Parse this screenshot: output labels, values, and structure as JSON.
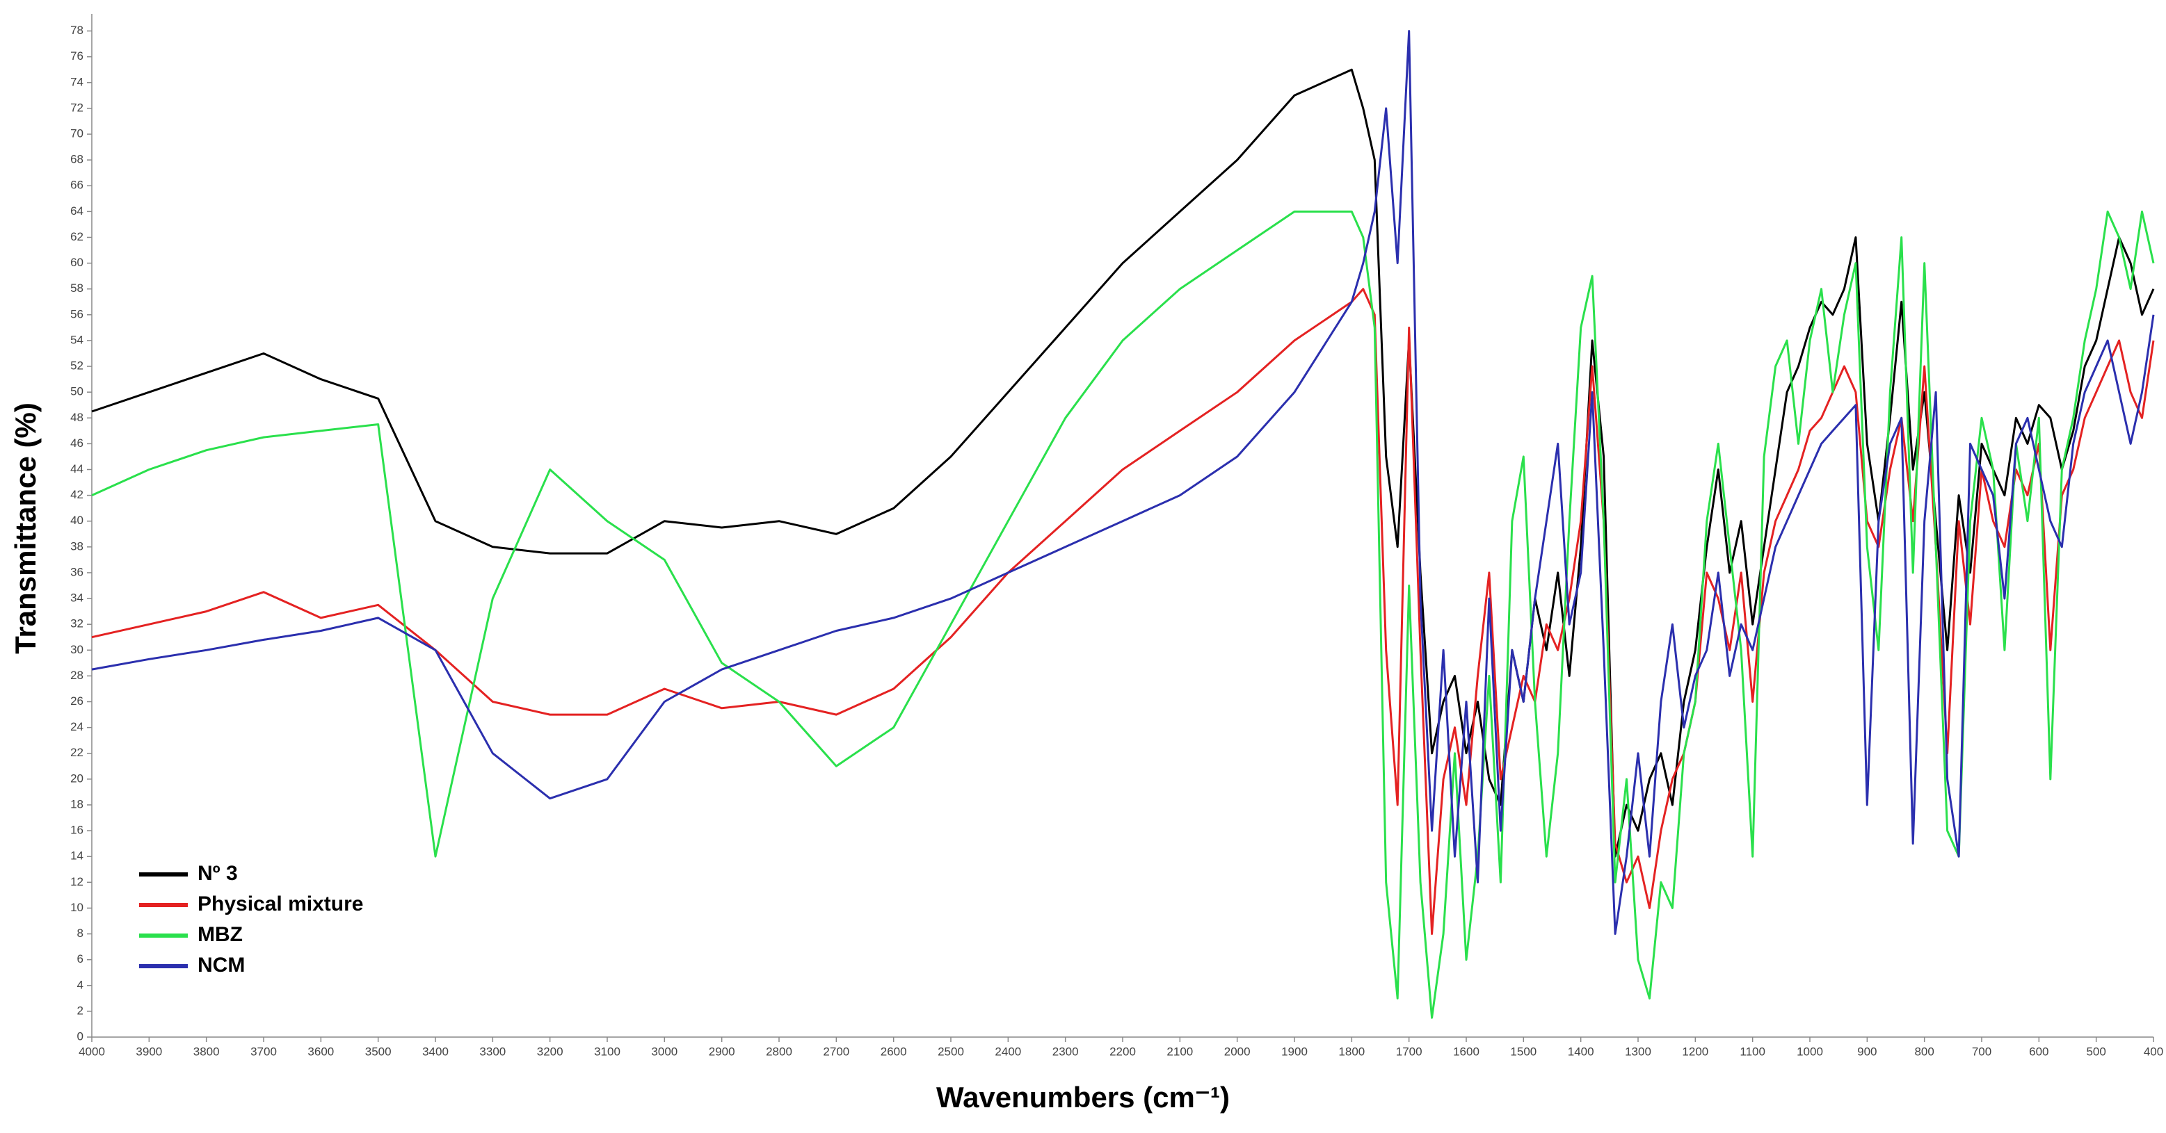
{
  "chart_data": {
    "type": "line",
    "xlabel": "Wavenumbers (cm⁻¹)",
    "ylabel": "Transmittance (%)",
    "xlim": [
      4000,
      400
    ],
    "ylim": [
      0,
      79
    ],
    "xticks": [
      4000,
      3900,
      3800,
      3700,
      3600,
      3500,
      3400,
      3300,
      3200,
      3100,
      3000,
      2900,
      2800,
      2700,
      2600,
      2500,
      2400,
      2300,
      2200,
      2100,
      2000,
      1900,
      1800,
      1700,
      1600,
      1500,
      1400,
      1300,
      1200,
      1100,
      1000,
      900,
      800,
      700,
      600,
      500,
      400
    ],
    "yticks": [
      0,
      2,
      4,
      6,
      8,
      10,
      12,
      14,
      16,
      18,
      20,
      22,
      24,
      26,
      28,
      30,
      32,
      34,
      36,
      38,
      40,
      42,
      44,
      46,
      48,
      50,
      52,
      54,
      56,
      58,
      60,
      62,
      64,
      66,
      68,
      70,
      72,
      74,
      76,
      78
    ],
    "legend": "lower-left",
    "x": [
      4000,
      3900,
      3800,
      3700,
      3600,
      3500,
      3400,
      3300,
      3200,
      3100,
      3000,
      2900,
      2800,
      2700,
      2600,
      2500,
      2400,
      2300,
      2200,
      2100,
      2000,
      1900,
      1800,
      1780,
      1760,
      1740,
      1720,
      1700,
      1680,
      1660,
      1640,
      1620,
      1600,
      1580,
      1560,
      1540,
      1520,
      1500,
      1480,
      1460,
      1440,
      1420,
      1400,
      1380,
      1360,
      1340,
      1320,
      1300,
      1280,
      1260,
      1240,
      1220,
      1200,
      1180,
      1160,
      1140,
      1120,
      1100,
      1080,
      1060,
      1040,
      1020,
      1000,
      980,
      960,
      940,
      920,
      900,
      880,
      860,
      840,
      820,
      800,
      780,
      760,
      740,
      720,
      700,
      680,
      660,
      640,
      620,
      600,
      580,
      560,
      540,
      520,
      500,
      480,
      460,
      440,
      420,
      400
    ],
    "series": [
      {
        "name": "Nº 3",
        "color": "#000000",
        "values": [
          48.5,
          50,
          51.5,
          53,
          51,
          49.5,
          40,
          38,
          37.5,
          37.5,
          40,
          39.5,
          40,
          39,
          41,
          45,
          50,
          55,
          60,
          64,
          68,
          73,
          75,
          72,
          68,
          45,
          38,
          54,
          36,
          22,
          26,
          28,
          22,
          26,
          20,
          18,
          30,
          26,
          34,
          30,
          36,
          28,
          38,
          54,
          45,
          14,
          18,
          16,
          20,
          22,
          18,
          26,
          30,
          38,
          44,
          36,
          40,
          32,
          38,
          44,
          50,
          52,
          55,
          57,
          56,
          58,
          62,
          46,
          40,
          48,
          57,
          44,
          50,
          40,
          30,
          42,
          36,
          46,
          44,
          42,
          48,
          46,
          49,
          48,
          44,
          47,
          52,
          54,
          58,
          62,
          60,
          56,
          58
        ]
      },
      {
        "name": "Physical mixture",
        "color": "#e42222",
        "values": [
          31,
          32,
          33,
          34.5,
          32.5,
          33.5,
          30,
          26,
          25,
          25,
          27,
          25.5,
          26,
          25,
          27,
          31,
          36,
          40,
          44,
          47,
          50,
          54,
          57,
          58,
          56,
          30,
          18,
          55,
          30,
          8,
          20,
          24,
          18,
          28,
          36,
          20,
          24,
          28,
          26,
          32,
          30,
          34,
          40,
          52,
          40,
          15,
          12,
          14,
          10,
          16,
          20,
          22,
          26,
          36,
          34,
          30,
          36,
          26,
          36,
          40,
          42,
          44,
          47,
          48,
          50,
          52,
          50,
          40,
          38,
          44,
          48,
          40,
          52,
          38,
          22,
          40,
          32,
          44,
          40,
          38,
          44,
          42,
          46,
          30,
          42,
          44,
          48,
          50,
          52,
          54,
          50,
          48,
          54
        ]
      },
      {
        "name": "MBZ",
        "color": "#2ae04c",
        "values": [
          42,
          44,
          45.5,
          46.5,
          47,
          47.5,
          14,
          34,
          44,
          40,
          37,
          29,
          26,
          21,
          24,
          32,
          40,
          48,
          54,
          58,
          61,
          64,
          64,
          62,
          55,
          12,
          3,
          35,
          12,
          1.5,
          8,
          22,
          6,
          14,
          28,
          12,
          40,
          45,
          26,
          14,
          22,
          40,
          55,
          59,
          40,
          12,
          20,
          6,
          3,
          12,
          10,
          22,
          26,
          40,
          46,
          38,
          30,
          14,
          45,
          52,
          54,
          46,
          54,
          58,
          50,
          56,
          60,
          38,
          30,
          50,
          62,
          36,
          60,
          38,
          16,
          14,
          40,
          48,
          44,
          30,
          46,
          40,
          48,
          20,
          44,
          48,
          54,
          58,
          64,
          62,
          58,
          64,
          60
        ]
      },
      {
        "name": "NCM",
        "color": "#2b2fae",
        "values": [
          28.5,
          29.3,
          30,
          30.8,
          31.5,
          32.5,
          30,
          22,
          18.5,
          20,
          26,
          28.5,
          30,
          31.5,
          32.5,
          34,
          36,
          38,
          40,
          42,
          45,
          50,
          57,
          60,
          64,
          72,
          60,
          78,
          34,
          16,
          30,
          14,
          26,
          12,
          34,
          16,
          30,
          26,
          34,
          40,
          46,
          32,
          36,
          50,
          30,
          8,
          14,
          22,
          14,
          26,
          32,
          24,
          28,
          30,
          36,
          28,
          32,
          30,
          34,
          38,
          40,
          42,
          44,
          46,
          47,
          48,
          49,
          18,
          40,
          46,
          48,
          15,
          40,
          50,
          20,
          14,
          46,
          44,
          42,
          34,
          46,
          48,
          44,
          40,
          38,
          46,
          50,
          52,
          54,
          50,
          46,
          50,
          56
        ]
      }
    ]
  }
}
